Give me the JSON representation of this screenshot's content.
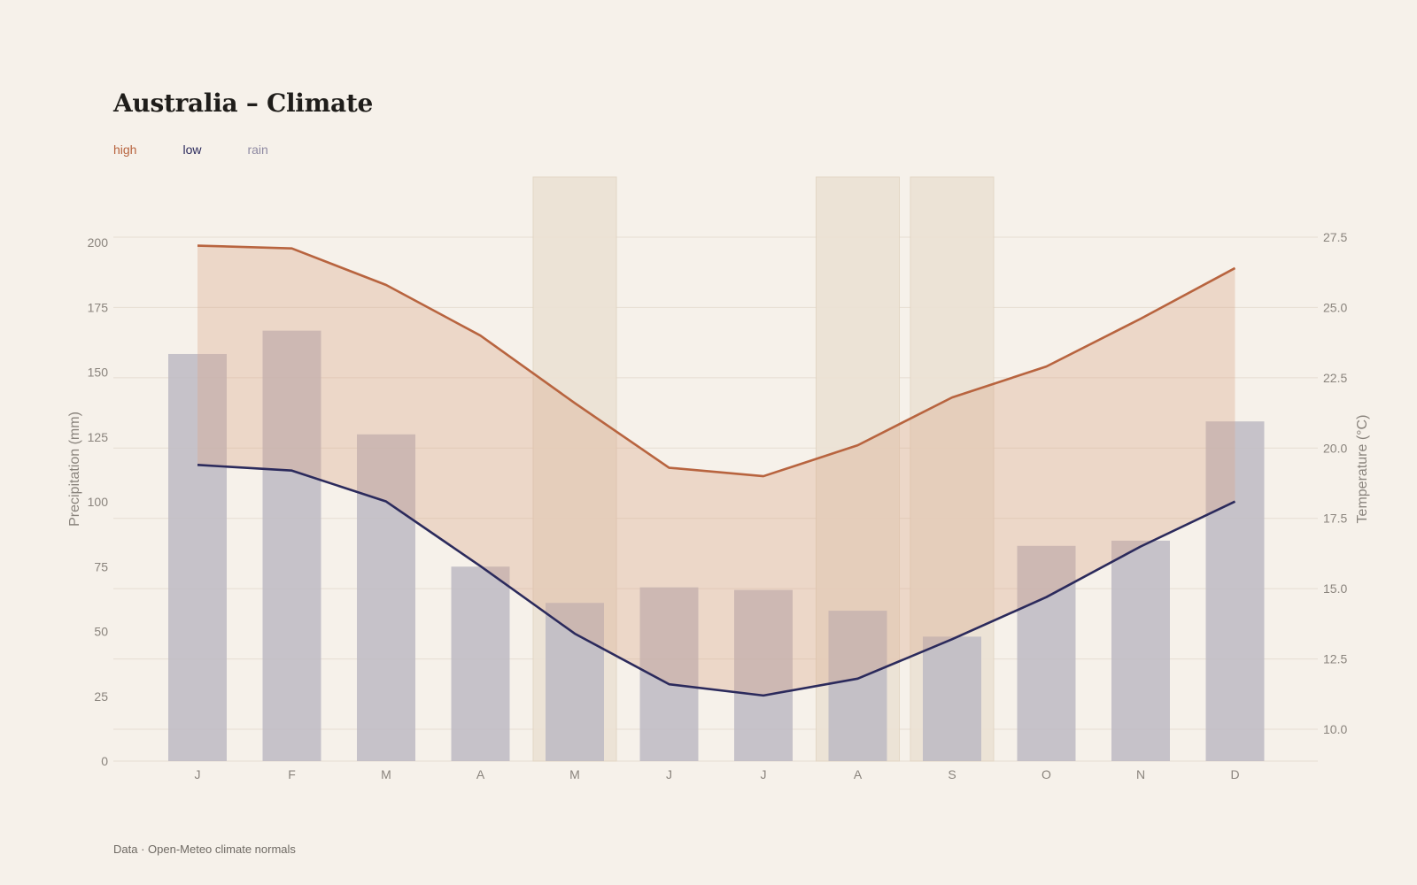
{
  "colors": {
    "background": "#f6f1ea",
    "high": "#b8643f",
    "low": "#2b2a5c",
    "rain": "#8f8aa2",
    "rain_bar": "#bdbac3",
    "band": "#ece2d4",
    "band_stroke": "#e2d5c2",
    "grid": "#e6ddd2",
    "area": "#e9d2c6"
  },
  "title": "Australia – Climate",
  "legend": [
    {
      "label": "high",
      "color": "#b8643f"
    },
    {
      "label": "low",
      "color": "#2b2a5c"
    },
    {
      "label": "rain",
      "color": "#8f8aa2"
    }
  ],
  "footer": "Data · Open-Meteo climate normals",
  "chart_data": {
    "type": "bar+line",
    "categories": [
      "J",
      "F",
      "M",
      "A",
      "M",
      "J",
      "J",
      "A",
      "S",
      "O",
      "N",
      "D"
    ],
    "bars": {
      "name": "rain",
      "axis": "left",
      "values": [
        157,
        166,
        126,
        75,
        61,
        67,
        66,
        58,
        48,
        83,
        85,
        131
      ]
    },
    "series": [
      {
        "name": "high",
        "axis": "right",
        "values": [
          27.2,
          27.1,
          25.8,
          24.0,
          21.6,
          19.3,
          19.0,
          20.1,
          21.8,
          22.9,
          24.6,
          26.4
        ]
      },
      {
        "name": "low",
        "axis": "right",
        "values": [
          19.4,
          19.2,
          18.1,
          15.8,
          13.4,
          11.6,
          11.2,
          11.8,
          13.2,
          14.7,
          16.5,
          18.1
        ]
      }
    ],
    "highlight_bands": [
      4,
      7,
      8
    ],
    "ylabel_left": "Precipitation (mm)",
    "ylabel_right": "Temperature (°C)",
    "y_left": {
      "min": 0,
      "max": 200,
      "ticks": [
        0,
        25,
        50,
        75,
        100,
        125,
        150,
        175,
        200
      ]
    },
    "y_right": {
      "min": 8.8,
      "max": 27.5,
      "ticks": [
        10.0,
        12.5,
        15.0,
        17.5,
        20.0,
        22.5,
        25.0,
        27.5
      ]
    },
    "grid": true
  }
}
